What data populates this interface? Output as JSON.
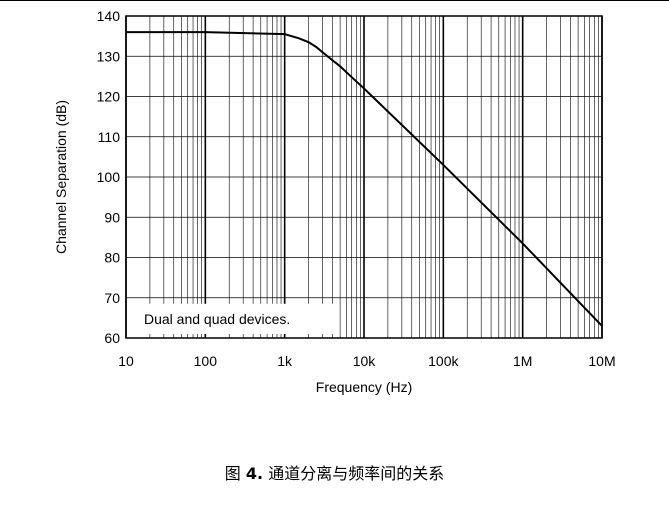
{
  "chart_data": {
    "type": "line",
    "xscale": "log",
    "xlim": [
      10,
      10000000
    ],
    "ylim": [
      60,
      140
    ],
    "grid": true,
    "xlabel": "Frequency (Hz)",
    "ylabel": "Channel Separation (dB)",
    "xticks": [
      {
        "value": 10,
        "label": "10"
      },
      {
        "value": 100,
        "label": "100"
      },
      {
        "value": 1000,
        "label": "1k"
      },
      {
        "value": 10000,
        "label": "10k"
      },
      {
        "value": 100000,
        "label": "100k"
      },
      {
        "value": 1000000,
        "label": "1M"
      },
      {
        "value": 10000000,
        "label": "10M"
      }
    ],
    "yticks": [
      60,
      70,
      80,
      90,
      100,
      110,
      120,
      130,
      140
    ],
    "annotation": "Dual and quad devices.",
    "series": [
      {
        "x": [
          10,
          100,
          1000,
          1500,
          2000,
          2500,
          3000,
          4000,
          5000,
          7000,
          10000,
          100000,
          1000000,
          10000000
        ],
        "y": [
          136,
          136,
          135.5,
          134.5,
          133.5,
          132.3,
          131,
          129,
          127.5,
          124.8,
          122,
          103,
          83.5,
          63
        ]
      }
    ]
  },
  "caption": {
    "prefix": "图 ",
    "number": "4.",
    "text": " 通道分离与频率间的关系"
  }
}
